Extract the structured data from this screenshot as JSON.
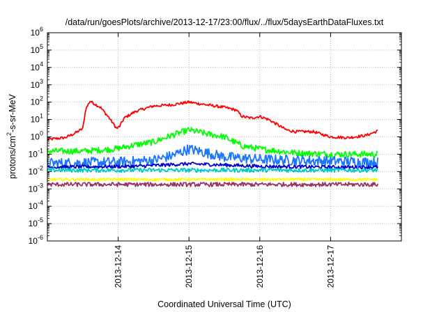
{
  "chart_data": {
    "type": "line",
    "title": "/data/run/goesPlots/archive/2013-12-17/23:00/flux/../flux/5daysEarthDataFluxes.txt",
    "xlabel": "Coordinated Universal Time (UTC)",
    "ylabel": {
      "prefix": "protons/cm",
      "sup": "2",
      "suffix": "-s-sr-MeV"
    },
    "xlim": [
      "2013-12-13T00:00",
      "2013-12-18T00:00"
    ],
    "xticks": [
      "2013-12-14",
      "2013-12-15",
      "2013-12-16",
      "2013-12-17"
    ],
    "ylim": [
      1e-06,
      1000000.0
    ],
    "yscale": "log",
    "yticks": [
      {
        "base": "10",
        "exp": "-6"
      },
      {
        "base": "10",
        "exp": "-5"
      },
      {
        "base": "10",
        "exp": "-4"
      },
      {
        "base": "10",
        "exp": "-3"
      },
      {
        "base": "10",
        "exp": "-2"
      },
      {
        "base": "10",
        "exp": "-1"
      },
      {
        "base": "10",
        "exp": "0"
      },
      {
        "base": "10",
        "exp": "1"
      },
      {
        "base": "10",
        "exp": "2"
      },
      {
        "base": "10",
        "exp": "3"
      },
      {
        "base": "10",
        "exp": "4"
      },
      {
        "base": "10",
        "exp": "5"
      },
      {
        "base": "10",
        "exp": "6"
      }
    ],
    "grid": true,
    "legend": "none",
    "series": [
      {
        "color": "#ff0000",
        "noise": 0.08,
        "x": [
          "2013-12-13T00:00",
          "2013-12-13T06:00",
          "2013-12-13T09:00",
          "2013-12-13T12:00",
          "2013-12-13T13:00",
          "2013-12-13T14:30",
          "2013-12-13T15:00",
          "2013-12-13T18:00",
          "2013-12-13T21:00",
          "2013-12-13T23:30",
          "2013-12-14T00:30",
          "2013-12-14T02:00",
          "2013-12-14T06:00",
          "2013-12-14T12:00",
          "2013-12-14T18:00",
          "2013-12-15T00:00",
          "2013-12-15T06:00",
          "2013-12-15T12:00",
          "2013-12-15T16:00",
          "2013-12-15T18:00",
          "2013-12-15T21:00",
          "2013-12-16T00:00",
          "2013-12-16T03:00",
          "2013-12-16T06:00",
          "2013-12-16T09:00",
          "2013-12-16T12:00",
          "2013-12-16T18:00",
          "2013-12-17T00:00",
          "2013-12-17T06:00",
          "2013-12-17T12:00",
          "2013-12-17T16:00"
        ],
        "y": [
          0.7,
          0.9,
          1.5,
          3,
          40,
          120,
          100,
          50,
          12,
          3,
          4,
          12,
          30,
          60,
          70,
          100,
          70,
          50,
          35,
          15,
          12,
          15,
          10,
          5,
          2.5,
          2,
          2,
          1,
          0.9,
          1.2,
          2.2
        ]
      },
      {
        "color": "#00ff00",
        "noise": 0.18,
        "x": [
          "2013-12-13T00:00",
          "2013-12-13T12:00",
          "2013-12-13T23:00",
          "2013-12-14T06:00",
          "2013-12-14T12:00",
          "2013-12-14T18:00",
          "2013-12-15T00:00",
          "2013-12-15T06:00",
          "2013-12-15T12:00",
          "2013-12-15T18:00",
          "2013-12-16T00:00",
          "2013-12-16T12:00",
          "2013-12-17T00:00",
          "2013-12-17T16:00"
        ],
        "y": [
          0.15,
          0.15,
          0.2,
          0.35,
          0.5,
          1.2,
          2.5,
          1.5,
          1.0,
          0.3,
          0.2,
          0.12,
          0.1,
          0.1
        ]
      },
      {
        "color": "#1a75ff",
        "noise": 0.3,
        "x": [
          "2013-12-13T00:00",
          "2013-12-14T00:00",
          "2013-12-14T12:00",
          "2013-12-14T18:00",
          "2013-12-15T00:00",
          "2013-12-15T06:00",
          "2013-12-15T12:00",
          "2013-12-16T00:00",
          "2013-12-17T00:00",
          "2013-12-17T16:00"
        ],
        "y": [
          0.03,
          0.035,
          0.045,
          0.08,
          0.2,
          0.12,
          0.07,
          0.05,
          0.04,
          0.035
        ]
      },
      {
        "color": "#0000cc",
        "noise": 0.1,
        "x": [
          "2013-12-13T00:00",
          "2013-12-14T06:00",
          "2013-12-15T00:00",
          "2013-12-15T12:00",
          "2013-12-16T00:00",
          "2013-12-17T00:00",
          "2013-12-17T16:00"
        ],
        "y": [
          0.018,
          0.02,
          0.028,
          0.024,
          0.02,
          0.018,
          0.018
        ]
      },
      {
        "color": "#00c8c8",
        "noise": 0.12,
        "x": [
          "2013-12-13T00:00",
          "2013-12-17T16:00"
        ],
        "y": [
          0.012,
          0.012
        ]
      },
      {
        "color": "#ffff00",
        "noise": 0.08,
        "x": [
          "2013-12-13T00:00",
          "2013-12-17T16:00"
        ],
        "y": [
          0.0035,
          0.0035
        ]
      },
      {
        "color": "#993366",
        "noise": 0.12,
        "x": [
          "2013-12-13T00:00",
          "2013-12-17T16:00"
        ],
        "y": [
          0.0018,
          0.0018
        ]
      }
    ]
  }
}
